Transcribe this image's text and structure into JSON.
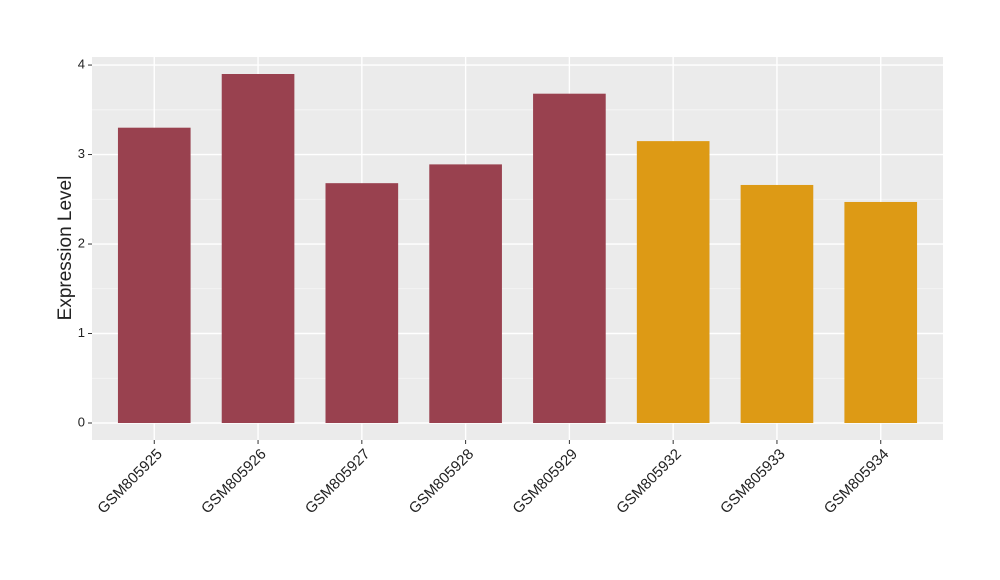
{
  "chart_data": {
    "type": "bar",
    "y_label": "Expression Level",
    "categories": [
      "GSM805925",
      "GSM805926",
      "GSM805927",
      "GSM805928",
      "GSM805929",
      "GSM805932",
      "GSM805933",
      "GSM805934"
    ],
    "values": [
      3.3,
      3.9,
      2.68,
      2.89,
      3.68,
      3.15,
      2.66,
      2.47
    ],
    "colors": [
      "#99414f",
      "#99414f",
      "#99414f",
      "#99414f",
      "#99414f",
      "#dd9a15",
      "#dd9a15",
      "#dd9a15"
    ],
    "ylim": [
      -0.19,
      4.09
    ],
    "yticks": [
      0,
      1,
      2,
      3,
      4
    ],
    "grid": true
  }
}
